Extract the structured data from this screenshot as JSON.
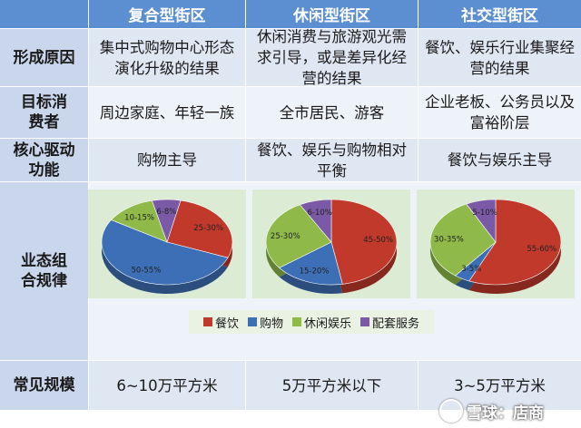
{
  "headers": {
    "corner": "",
    "col1": "复合型街区",
    "col2": "休闲型街区",
    "col3": "社交型街区"
  },
  "rows": [
    {
      "label": "形成原因",
      "c1": "集中式购物中心形态演化升级的结果",
      "c2": "休闲消费与旅游观光需求引导，或是差异化经营的结果",
      "c3": "餐饮、娱乐行业集聚经营的结果"
    },
    {
      "label": "目标消费者",
      "c1": "周边家庭、年轻一族",
      "c2": "全市居民、游客",
      "c3": "企业老板、公务员以及富裕阶层"
    },
    {
      "label": "核心驱动功能",
      "c1": "购物主导",
      "c2": "餐饮、娱乐与购物相对平衡",
      "c3": "餐饮与娱乐主导"
    },
    {
      "label": "业态组合规律"
    },
    {
      "label": "常见规模",
      "c1": "6~10万平方米",
      "c2": "5万平方米以下",
      "c3": "3~5万平方米"
    }
  ],
  "legend": [
    {
      "name": "餐饮",
      "color": "#c0392b"
    },
    {
      "name": "购物",
      "color": "#3d6fb6"
    },
    {
      "name": "休闲娱乐",
      "color": "#8fba4a"
    },
    {
      "name": "配套服务",
      "color": "#7a5aa6"
    }
  ],
  "watermark": "雪球：店商",
  "chart_data": [
    {
      "type": "pie",
      "title": "复合型街区",
      "categories": [
        "餐饮",
        "购物",
        "休闲娱乐",
        "配套服务"
      ],
      "labels": [
        "25-30%",
        "50-55%",
        "10-15%",
        "6-8%"
      ],
      "values": [
        27.5,
        52.5,
        12.5,
        7
      ],
      "colors": [
        "#c0392b",
        "#3d6fb6",
        "#8fba4a",
        "#7a5aa6"
      ]
    },
    {
      "type": "pie",
      "title": "休闲型街区",
      "categories": [
        "餐饮",
        "购物",
        "休闲娱乐",
        "配套服务"
      ],
      "labels": [
        "45-50%",
        "15-20%",
        "25-30%",
        "6-10%"
      ],
      "values": [
        47.5,
        17.5,
        27.5,
        8
      ],
      "colors": [
        "#c0392b",
        "#3d6fb6",
        "#8fba4a",
        "#7a5aa6"
      ]
    },
    {
      "type": "pie",
      "title": "社交型街区",
      "categories": [
        "餐饮",
        "购物",
        "休闲娱乐",
        "配套服务"
      ],
      "labels": [
        "55-60%",
        "3-5%",
        "30-35%",
        "5-10%"
      ],
      "values": [
        57.5,
        4,
        32.5,
        7.5
      ],
      "colors": [
        "#c0392b",
        "#3d6fb6",
        "#8fba4a",
        "#7a5aa6"
      ]
    }
  ]
}
